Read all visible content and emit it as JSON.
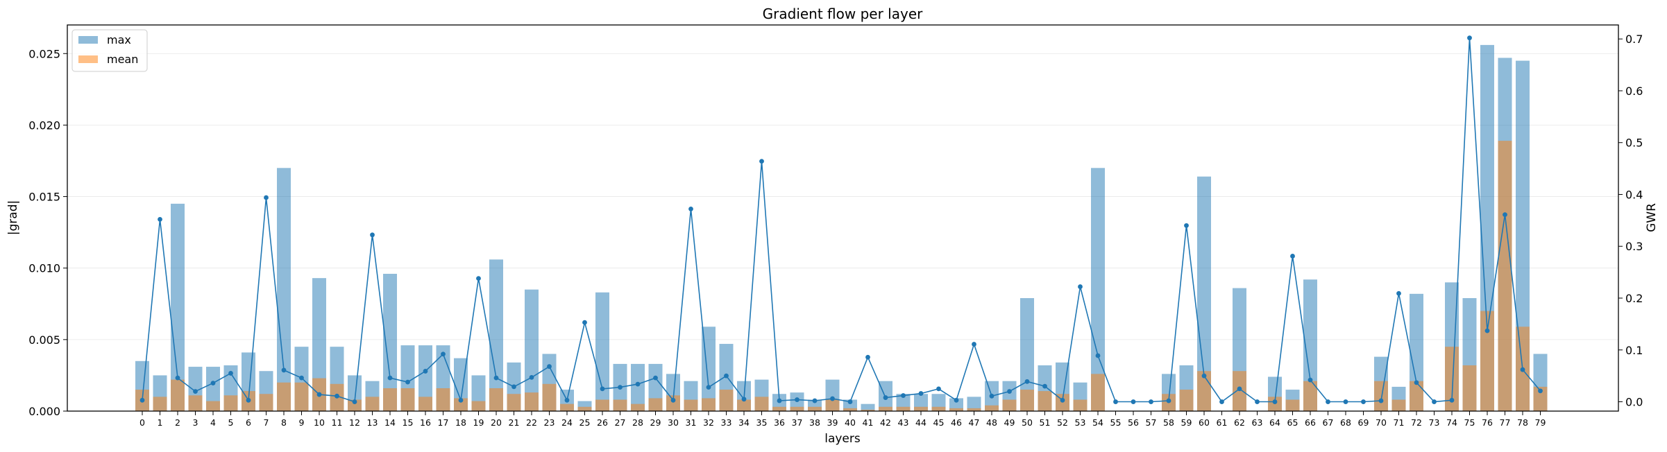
{
  "chart_data": {
    "type": "bar",
    "title": "Gradient flow per layer",
    "xlabel": "layers",
    "ylabel": "|grad|",
    "y2label": "GWR",
    "ylim": [
      0,
      0.027
    ],
    "y2lim": [
      -0.018,
      0.727
    ],
    "yticks": [
      "0.000",
      "0.005",
      "0.010",
      "0.015",
      "0.020",
      "0.025"
    ],
    "y2ticks": [
      "0.0",
      "0.1",
      "0.2",
      "0.3",
      "0.4",
      "0.5",
      "0.6",
      "0.7"
    ],
    "grid": "horizontal",
    "legend": "top-left",
    "categories": [
      "0",
      "1",
      "2",
      "3",
      "4",
      "5",
      "6",
      "7",
      "8",
      "9",
      "10",
      "11",
      "12",
      "13",
      "14",
      "15",
      "16",
      "17",
      "18",
      "19",
      "20",
      "21",
      "22",
      "23",
      "24",
      "25",
      "26",
      "27",
      "28",
      "29",
      "30",
      "31",
      "32",
      "33",
      "34",
      "35",
      "36",
      "37",
      "38",
      "39",
      "40",
      "41",
      "42",
      "43",
      "44",
      "45",
      "46",
      "47",
      "48",
      "49",
      "50",
      "51",
      "52",
      "53",
      "54",
      "55",
      "56",
      "57",
      "58",
      "59",
      "60",
      "61",
      "62",
      "63",
      "64",
      "65",
      "66",
      "67",
      "68",
      "69",
      "70",
      "71",
      "72",
      "73",
      "74",
      "75",
      "76",
      "77",
      "78",
      "79"
    ],
    "series": [
      {
        "name": "max",
        "kind": "bar",
        "color": "#1f77b4",
        "values": [
          0.0035,
          0.0025,
          0.0145,
          0.0031,
          0.0031,
          0.0032,
          0.0041,
          0.0028,
          0.017,
          0.0045,
          0.0093,
          0.0045,
          0.0025,
          0.0021,
          0.0096,
          0.0046,
          0.0046,
          0.0046,
          0.0037,
          0.0025,
          0.0106,
          0.0034,
          0.0085,
          0.004,
          0.0015,
          0.0007,
          0.0083,
          0.0033,
          0.0033,
          0.0033,
          0.0026,
          0.0021,
          0.0059,
          0.0047,
          0.0021,
          0.0022,
          0.0012,
          0.0013,
          0.0008,
          0.0022,
          0.0008,
          0.0005,
          0.0021,
          0.0012,
          0.0012,
          0.0012,
          0.0009,
          0.001,
          0.0021,
          0.0021,
          0.0079,
          0.0032,
          0.0034,
          0.002,
          0.017,
          0,
          0,
          0,
          0.0026,
          0.0032,
          0.0164,
          0,
          0.0086,
          0,
          0.0024,
          0.0015,
          0.0092,
          0,
          0,
          0,
          0.0038,
          0.0017,
          0.0082,
          0,
          0.009,
          0.0079,
          0.0256,
          0.0247,
          0.0245,
          0.004
        ]
      },
      {
        "name": "mean",
        "kind": "bar",
        "color": "#ff7f0e",
        "values": [
          0.0015,
          0.001,
          0.0022,
          0.0011,
          0.0007,
          0.0011,
          0.0014,
          0.0012,
          0.002,
          0.002,
          0.0023,
          0.0019,
          0.0008,
          0.001,
          0.0016,
          0.0016,
          0.001,
          0.0016,
          0.0009,
          0.0007,
          0.0016,
          0.0012,
          0.0013,
          0.0019,
          0.0005,
          0.0003,
          0.0008,
          0.0008,
          0.0005,
          0.0009,
          0.0011,
          0.0008,
          0.0009,
          0.0015,
          0.0008,
          0.001,
          0.0003,
          0.0003,
          0.0003,
          0.0008,
          0.0002,
          0.0001,
          0.0003,
          0.0003,
          0.0003,
          0.0003,
          0.0002,
          0.0002,
          0.0004,
          0.0008,
          0.0015,
          0.0014,
          0.0012,
          0.0008,
          0.0026,
          0,
          0,
          0,
          0.0012,
          0.0015,
          0.0028,
          0,
          0.0028,
          0,
          0.001,
          0.0008,
          0.0021,
          0,
          0,
          0,
          0.0021,
          0.0008,
          0.0021,
          0,
          0.0045,
          0.0032,
          0.007,
          0.0189,
          0.0059,
          0.0017
        ]
      },
      {
        "name": "GWR",
        "kind": "line",
        "color": "#1f77b4",
        "axis": "right",
        "values": [
          0.003,
          0.352,
          0.046,
          0.02,
          0.036,
          0.055,
          0.003,
          0.394,
          0.061,
          0.046,
          0.014,
          0.011,
          0.0,
          0.322,
          0.046,
          0.038,
          0.059,
          0.092,
          0.003,
          0.238,
          0.046,
          0.029,
          0.047,
          0.068,
          0.003,
          0.153,
          0.025,
          0.028,
          0.034,
          0.046,
          0.003,
          0.372,
          0.028,
          0.05,
          0.005,
          0.464,
          0.002,
          0.004,
          0.002,
          0.006,
          0.0,
          0.086,
          0.008,
          0.012,
          0.016,
          0.025,
          0.003,
          0.111,
          0.011,
          0.02,
          0.039,
          0.03,
          0.003,
          0.222,
          0.089,
          0.0,
          0.0,
          0.0,
          0.002,
          0.34,
          0.05,
          0.0,
          0.025,
          0.0,
          0.0,
          0.281,
          0.042,
          0.0,
          0.0,
          0.0,
          0.002,
          0.209,
          0.037,
          0.0,
          0.003,
          0.702,
          0.137,
          0.361,
          0.062,
          0.021
        ]
      }
    ]
  }
}
